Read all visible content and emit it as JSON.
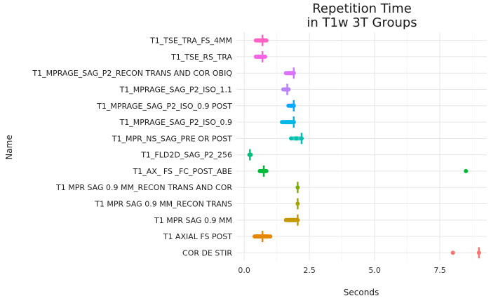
{
  "chart_data": {
    "type": "strip",
    "title_lines": [
      "Repetition Time",
      "in T1w 3T Groups"
    ],
    "xlabel": "Seconds",
    "ylabel": "Name",
    "xlim": [
      -0.3,
      9.3
    ],
    "x_ticks": [
      0,
      2.5,
      5,
      7.5
    ],
    "x_tick_labels": [
      "0.0",
      "2.5",
      "5.0",
      "7.5"
    ],
    "grid": true,
    "legend": "none",
    "categories": [
      {
        "name": "T1_TSE_TRA_FS_4MM",
        "color": "#FF61C3",
        "points": [
          0.45,
          0.5,
          0.55,
          0.6,
          0.65,
          0.7,
          0.72,
          0.75,
          0.8,
          0.85
        ],
        "median": 0.7
      },
      {
        "name": "T1_TSE_RS_TRA",
        "color": "#F564E3",
        "points": [
          0.45,
          0.5,
          0.55,
          0.6,
          0.65,
          0.7,
          0.75,
          0.8
        ],
        "median": 0.7
      },
      {
        "name": "T1_MPRAGE_SAG_P2_RECON TRANS AND COR OBIQ",
        "color": "#DB72FB",
        "points": [
          1.6,
          1.65,
          1.7,
          1.75,
          1.8,
          1.85,
          1.9
        ],
        "median": 1.9
      },
      {
        "name": "T1_MPRAGE_SAG_P2_ISO_1.1",
        "color": "#B983FF",
        "points": [
          1.5,
          1.55,
          1.6,
          1.65,
          1.7
        ],
        "median": 1.65
      },
      {
        "name": "T1_MPRAGE_SAG_P2_ISO_0.9 POST",
        "color": "#00A9FF",
        "points": [
          1.7,
          1.75,
          1.8,
          1.85,
          1.9
        ],
        "median": 1.9
      },
      {
        "name": "T1_MPRAGE_SAG_P2_ISO_0.9",
        "color": "#00B8E7",
        "points": [
          1.45,
          1.5,
          1.6,
          1.65,
          1.7,
          1.75,
          1.8,
          1.85,
          1.9
        ],
        "median": 1.9
      },
      {
        "name": "T1_MPR_NS_SAG_PRE OR POST",
        "color": "#00C0AF",
        "points": [
          1.8,
          2.0,
          2.2
        ],
        "median": 2.2
      },
      {
        "name": "T1_FLD2D_SAG_P2_256",
        "color": "#00BF7D",
        "points": [
          0.2,
          0.22,
          0.25
        ],
        "median": 0.22
      },
      {
        "name": "T1_AX_ FS _FC_POST_ABE",
        "color": "#00BA38",
        "points": [
          0.6,
          0.65,
          0.7,
          0.75,
          0.8,
          0.85,
          8.5
        ],
        "median": 0.75
      },
      {
        "name": "T1 MPR SAG 0.9 MM_RECON TRANS AND COR",
        "color": "#7CAE00",
        "points": [
          2.05
        ],
        "median": 2.05
      },
      {
        "name": "T1 MPR SAG 0.9 MM_RECON TRANS",
        "color": "#A3A500",
        "points": [
          2.05
        ],
        "median": 2.05
      },
      {
        "name": "T1 MPR SAG 0.9 MM",
        "color": "#C49A00",
        "points": [
          1.6,
          1.65,
          1.7,
          1.75,
          1.8,
          1.85,
          1.9,
          1.95,
          2.0,
          2.05
        ],
        "median": 2.05
      },
      {
        "name": "T1 AXIAL FS POST",
        "color": "#E58700",
        "points": [
          0.4,
          0.45,
          0.5,
          0.55,
          0.6,
          0.65,
          0.7,
          0.75,
          0.8,
          0.85,
          0.9,
          1.0
        ],
        "median": 0.7
      },
      {
        "name": "COR DE STIR",
        "color": "#F8766D",
        "points": [
          8.0,
          9.0
        ],
        "median": 9.0
      }
    ]
  }
}
